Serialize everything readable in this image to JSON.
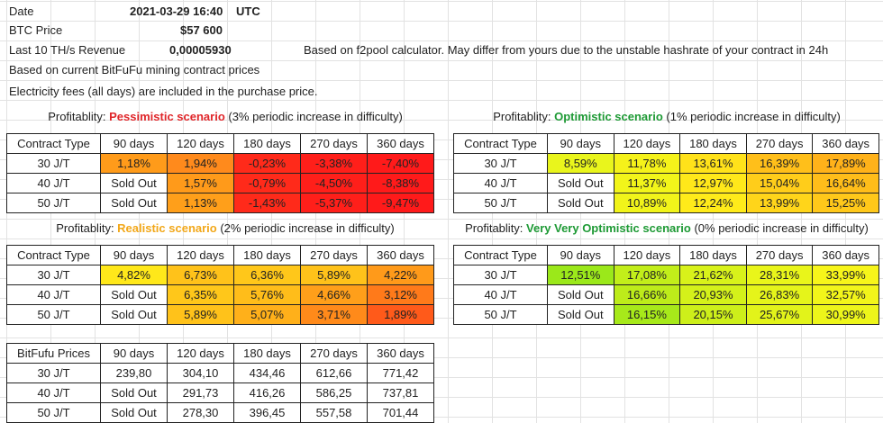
{
  "header": {
    "date_label": "Date",
    "date_value": "2021-03-29 16:40",
    "date_tz": "UTC",
    "price_label": "BTC Price",
    "price_value": "$57 600",
    "revenue_label": "Last 10 TH/s Revenue",
    "revenue_value": "0,00005930",
    "revenue_note": "Based on f2pool calculator. May differ from yours due to the unstable hashrate of your contract in 24h",
    "note1": "Based on current BitFuFu mining contract prices",
    "note2": "Electricity fees (all days) are included in the purchase price."
  },
  "columns": [
    "90 days",
    "120 days",
    "180 days",
    "270 days",
    "360 days"
  ],
  "scenarios": {
    "pessimistic": {
      "prefix": "Profitablity: ",
      "name": "Pessimistic scenario",
      "suffix": " (3% periodic increase in difficulty)",
      "corner": "Contract Type",
      "rows": [
        {
          "type": "30 J/T",
          "values": [
            "1,18%",
            "1,94%",
            "-0,23%",
            "-3,38%",
            "-7,40%"
          ],
          "colors": [
            "#ff9b1a",
            "#ff8a1c",
            "#ff2a1a",
            "#ff1f1a",
            "#ff1a1a"
          ]
        },
        {
          "type": "40 J/T",
          "values": [
            "Sold Out",
            "1,57%",
            "-0,79%",
            "-4,50%",
            "-8,38%"
          ],
          "colors": [
            "#ffffff",
            "#ff9a1a",
            "#ff2a1a",
            "#ff1f1a",
            "#ff1a1a"
          ]
        },
        {
          "type": "50 J/T",
          "values": [
            "Sold Out",
            "1,13%",
            "-1,43%",
            "-5,37%",
            "-9,47%"
          ],
          "colors": [
            "#ffffff",
            "#ff9f1a",
            "#ff2a1a",
            "#ff1f1a",
            "#ff1a1a"
          ]
        }
      ]
    },
    "optimistic": {
      "prefix": "Profitablity: ",
      "name": "Optimistic scenario",
      "suffix": " (1% periodic increase in difficulty)",
      "corner": "Contract Type",
      "rows": [
        {
          "type": "30 J/T",
          "values": [
            "8,59%",
            "11,78%",
            "13,61%",
            "16,39%",
            "17,89%"
          ],
          "colors": [
            "#e9f51c",
            "#f5f21a",
            "#ffe21a",
            "#ffbf1a",
            "#ffb21a"
          ]
        },
        {
          "type": "40 J/T",
          "values": [
            "Sold Out",
            "11,37%",
            "12,97%",
            "15,04%",
            "16,64%"
          ],
          "colors": [
            "#ffffff",
            "#f2f51a",
            "#ffe81a",
            "#ffcd1a",
            "#ffbd1a"
          ]
        },
        {
          "type": "50 J/T",
          "values": [
            "Sold Out",
            "10,89%",
            "12,24%",
            "13,99%",
            "15,25%"
          ],
          "colors": [
            "#ffffff",
            "#f1f41a",
            "#ffeb1a",
            "#ffd51a",
            "#ffc81a"
          ]
        }
      ]
    },
    "realistic": {
      "prefix": "Profitablity: ",
      "name": "Realistic scenario",
      "suffix": " (2% periodic increase in difficulty)",
      "corner": "Contract Type",
      "rows": [
        {
          "type": "30 J/T",
          "values": [
            "4,82%",
            "6,73%",
            "6,36%",
            "5,89%",
            "4,22%"
          ],
          "colors": [
            "#ffe81a",
            "#ffc21a",
            "#ffc71a",
            "#ffc21a",
            "#ff9a1a"
          ]
        },
        {
          "type": "40 J/T",
          "values": [
            "Sold Out",
            "6,35%",
            "5,76%",
            "4,66%",
            "3,12%"
          ],
          "colors": [
            "#ffffff",
            "#ffc71a",
            "#ffbd1a",
            "#ff9f1a",
            "#ff7a1a"
          ]
        },
        {
          "type": "50 J/T",
          "values": [
            "Sold Out",
            "5,89%",
            "5,07%",
            "3,71%",
            "1,89%"
          ],
          "colors": [
            "#ffffff",
            "#ffc21a",
            "#ffb01a",
            "#ff8a1a",
            "#ff5a1a"
          ]
        }
      ]
    },
    "very_optimistic": {
      "prefix": "Profitablity: ",
      "name": "Very Very Optimistic scenario",
      "suffix": " (0% periodic increase in difficulty)",
      "corner": "Contract Type",
      "rows": [
        {
          "type": "30 J/T",
          "values": [
            "12,51%",
            "17,08%",
            "21,62%",
            "28,31%",
            "33,99%"
          ],
          "colors": [
            "#9be81a",
            "#c2ee1a",
            "#d8f21a",
            "#e9f51a",
            "#f7f51a"
          ]
        },
        {
          "type": "40 J/T",
          "values": [
            "Sold Out",
            "16,66%",
            "20,93%",
            "26,83%",
            "32,57%"
          ],
          "colors": [
            "#ffffff",
            "#bdec1a",
            "#d4f11a",
            "#e5f41a",
            "#f2f51a"
          ]
        },
        {
          "type": "50 J/T",
          "values": [
            "Sold Out",
            "16,15%",
            "20,15%",
            "25,67%",
            "30,99%"
          ],
          "colors": [
            "#ffffff",
            "#a7e91a",
            "#cdef1a",
            "#e2f31a",
            "#edf51a"
          ]
        }
      ]
    }
  },
  "prices": {
    "corner": "BitFufu Prices",
    "rows": [
      {
        "type": "30 J/T",
        "values": [
          "239,80",
          "304,10",
          "434,46",
          "612,66",
          "771,42"
        ]
      },
      {
        "type": "40 J/T",
        "values": [
          "Sold Out",
          "291,73",
          "416,26",
          "586,25",
          "737,81"
        ]
      },
      {
        "type": "50 J/T",
        "values": [
          "Sold Out",
          "278,30",
          "396,45",
          "557,58",
          "701,44"
        ]
      }
    ]
  }
}
